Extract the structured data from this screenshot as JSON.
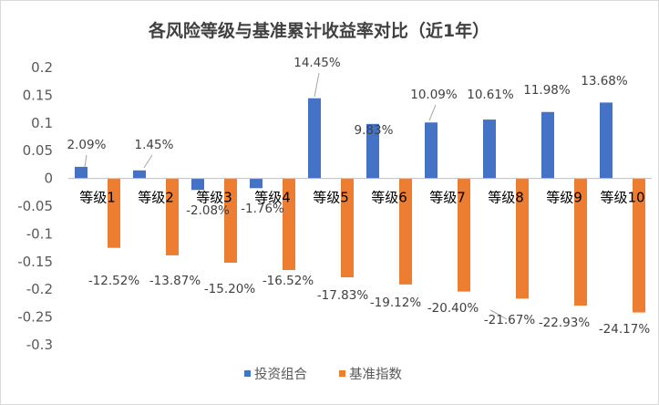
{
  "chart_data": {
    "type": "bar",
    "title": "各风险等级与基准累计收益率对比（近1年）",
    "categories": [
      "等级1",
      "等级2",
      "等级3",
      "等级4",
      "等级5",
      "等级6",
      "等级7",
      "等级8",
      "等级9",
      "等级10"
    ],
    "series": [
      {
        "name": "投资组合",
        "color": "#4472C4",
        "values": [
          0.0209,
          0.0145,
          -0.0208,
          -0.0176,
          0.1445,
          0.0983,
          0.1009,
          0.1061,
          0.1198,
          0.1368
        ],
        "labels": [
          "2.09%",
          "1.45%",
          "-2.08%",
          "-1.76%",
          "14.45%",
          "9.83%",
          "10.09%",
          "10.61%",
          "11.98%",
          "13.68%"
        ]
      },
      {
        "name": "基准指数",
        "color": "#ED7D31",
        "values": [
          -0.1252,
          -0.1387,
          -0.152,
          -0.1652,
          -0.1783,
          -0.1912,
          -0.204,
          -0.2167,
          -0.2293,
          -0.2417
        ],
        "labels": [
          "-12.52%",
          "-13.87%",
          "-15.20%",
          "-16.52%",
          "-17.83%",
          "-19.12%",
          "-20.40%",
          "-21.67%",
          "-22.93%",
          "-24.17%"
        ]
      }
    ],
    "ylim": [
      -0.3,
      0.2
    ],
    "yticks": [
      0.2,
      0.15,
      0.1,
      0.05,
      0,
      -0.05,
      -0.1,
      -0.15,
      -0.2,
      -0.25,
      -0.3
    ],
    "ytick_labels": [
      "0.2",
      "0.15",
      "0.1",
      "0.05",
      "0",
      "-0.05",
      "-0.1",
      "-0.15",
      "-0.2",
      "-0.25",
      "-0.3"
    ],
    "grid": false,
    "legend_position": "bottom"
  }
}
